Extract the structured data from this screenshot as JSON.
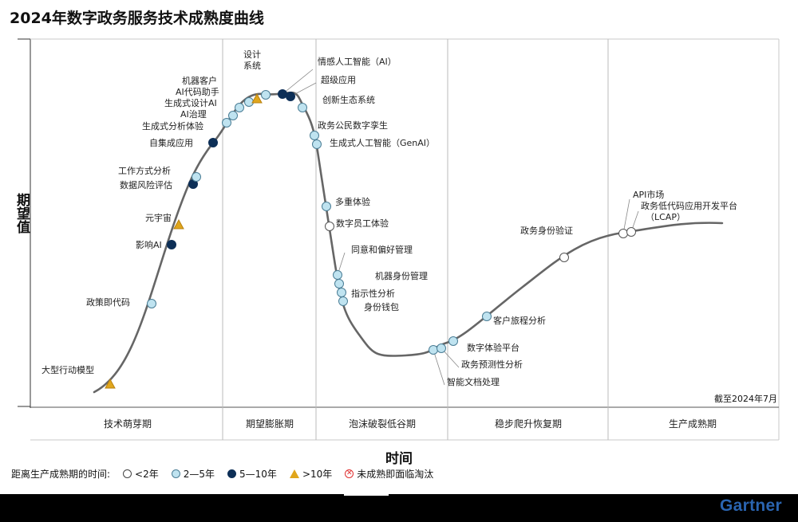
{
  "title": "2024年数字政务服务技术成熟度曲线",
  "y_axis_label": "期望值",
  "x_axis_label": "时间",
  "as_of": "截至2024年7月",
  "brand": "Gartner",
  "phases": [
    {
      "name": "技术萌芽期"
    },
    {
      "name": "期望膨胀期"
    },
    {
      "name": "泡沫破裂低谷期"
    },
    {
      "name": "稳步爬升恢复期"
    },
    {
      "name": "生产成熟期"
    }
  ],
  "legend": {
    "title": "距离生产成熟期的时间:",
    "items": [
      {
        "label": "<2年",
        "marker": "white-circle",
        "color": "#ffffff"
      },
      {
        "label": "2—5年",
        "marker": "light-blue-circle",
        "color": "#bfe3f0"
      },
      {
        "label": "5—10年",
        "marker": "dark-blue-circle",
        "color": "#0d2f57"
      },
      {
        "label": ">10年",
        "marker": "triangle",
        "color": "#e0a61c"
      },
      {
        "label": "未成熟即面临淘汰",
        "marker": "x-circle",
        "color": "#e03030"
      }
    ]
  },
  "technologies": [
    {
      "label": "大型行动模型",
      "category": ">10年"
    },
    {
      "label": "政策即代码",
      "category": "2—5年"
    },
    {
      "label": "影响AI",
      "category": "5—10年"
    },
    {
      "label": "元宇宙",
      "category": ">10年"
    },
    {
      "label": "数据风险评估",
      "category": "5—10年"
    },
    {
      "label": "工作方式分析",
      "category": "2—5年"
    },
    {
      "label": "自集成应用",
      "category": "5—10年"
    },
    {
      "label": "生成式分析体验",
      "category": "2—5年"
    },
    {
      "label": "AI治理",
      "category": "2—5年"
    },
    {
      "label": "生成式设计AI",
      "category": "2—5年"
    },
    {
      "label": "AI代码助手",
      "category": "2—5年"
    },
    {
      "label": "机器客户",
      "category": ">10年"
    },
    {
      "label": "设计系统",
      "category": "2—5年"
    },
    {
      "label": "情感人工智能（AI）",
      "category": "5—10年"
    },
    {
      "label": "超级应用",
      "category": "5—10年"
    },
    {
      "label": "创新生态系统",
      "category": "2—5年"
    },
    {
      "label": "政务公民数字孪生",
      "category": "2—5年"
    },
    {
      "label": "生成式人工智能（GenAI）",
      "category": "2—5年"
    },
    {
      "label": "多重体验",
      "category": "2—5年"
    },
    {
      "label": "数字员工体验",
      "category": "<2年"
    },
    {
      "label": "同意和偏好管理",
      "category": "2—5年"
    },
    {
      "label": "机器身份管理",
      "category": "2—5年"
    },
    {
      "label": "指示性分析",
      "category": "2—5年"
    },
    {
      "label": "身份钱包",
      "category": "2—5年"
    },
    {
      "label": "智能文档处理",
      "category": "2—5年"
    },
    {
      "label": "政务预测性分析",
      "category": "2—5年"
    },
    {
      "label": "数字体验平台",
      "category": "2—5年"
    },
    {
      "label": "客户旅程分析",
      "category": "2—5年"
    },
    {
      "label": "政务身份验证",
      "category": "<2年"
    },
    {
      "label": "API市场",
      "category": "<2年"
    },
    {
      "label": "政务低代码应用开发平台（LCAP）",
      "category": "<2年"
    }
  ]
}
